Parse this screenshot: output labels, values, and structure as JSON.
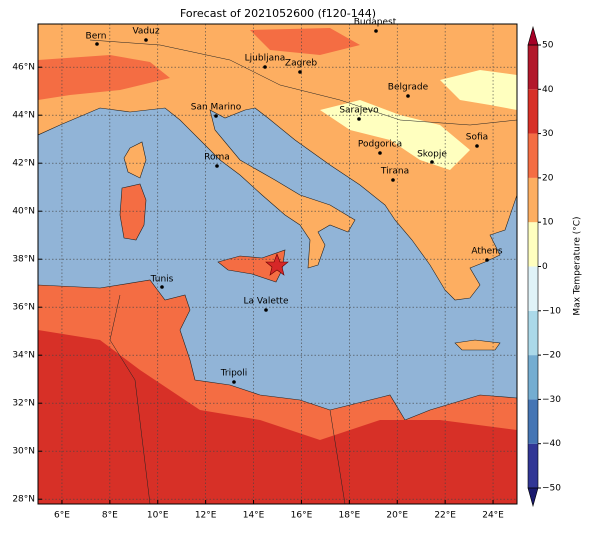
{
  "title": "Forecast of 2021052600 (f120-144)",
  "map": {
    "xlim": [
      5,
      25
    ],
    "ylim": [
      27.8,
      47.8
    ],
    "xticks": [
      {
        "value": 6,
        "label": "6°E"
      },
      {
        "value": 8,
        "label": "8°E"
      },
      {
        "value": 10,
        "label": "10°E"
      },
      {
        "value": 12,
        "label": "12°E"
      },
      {
        "value": 14,
        "label": "14°E"
      },
      {
        "value": 16,
        "label": "16°E"
      },
      {
        "value": 18,
        "label": "18°E"
      },
      {
        "value": 20,
        "label": "20°E"
      },
      {
        "value": 22,
        "label": "22°E"
      },
      {
        "value": 24,
        "label": "24°E"
      }
    ],
    "yticks": [
      {
        "value": 28,
        "label": "28°N"
      },
      {
        "value": 30,
        "label": "30°N"
      },
      {
        "value": 32,
        "label": "32°N"
      },
      {
        "value": 34,
        "label": "34°N"
      },
      {
        "value": 36,
        "label": "36°N"
      },
      {
        "value": 38,
        "label": "38°N"
      },
      {
        "value": 40,
        "label": "40°N"
      },
      {
        "value": 42,
        "label": "42°N"
      },
      {
        "value": 44,
        "label": "44°N"
      },
      {
        "value": 46,
        "label": "46°N"
      }
    ],
    "grid": true,
    "cities": [
      "Bern",
      "Vaduz",
      "Budapest",
      "Ljubljana",
      "Zagreb",
      "Belgrade",
      "Sarajevo",
      "San Marino",
      "Sofia",
      "Podgorica",
      "Skopje",
      "Roma",
      "Tirana",
      "Athens",
      "Tunis",
      "La Valette",
      "Tripoli"
    ]
  },
  "colorbar": {
    "label": "Max Temperature (°C)",
    "lim": [
      -50,
      50
    ],
    "ticks": [
      {
        "value": -50,
        "label": "−50"
      },
      {
        "value": -40,
        "label": "−40"
      },
      {
        "value": -30,
        "label": "−30"
      },
      {
        "value": -20,
        "label": "−20"
      },
      {
        "value": -10,
        "label": "−10"
      },
      0,
      10,
      20,
      30,
      40,
      50
    ],
    "colors": [
      "#313695",
      "#4575b4",
      "#74add1",
      "#abd9e9",
      "#e0f3f8",
      "#ffffbf",
      "#fdae61",
      "#f46d43",
      "#d73027",
      "#b2182b"
    ],
    "under": "#1a1a6e",
    "over": "#a50026"
  }
}
